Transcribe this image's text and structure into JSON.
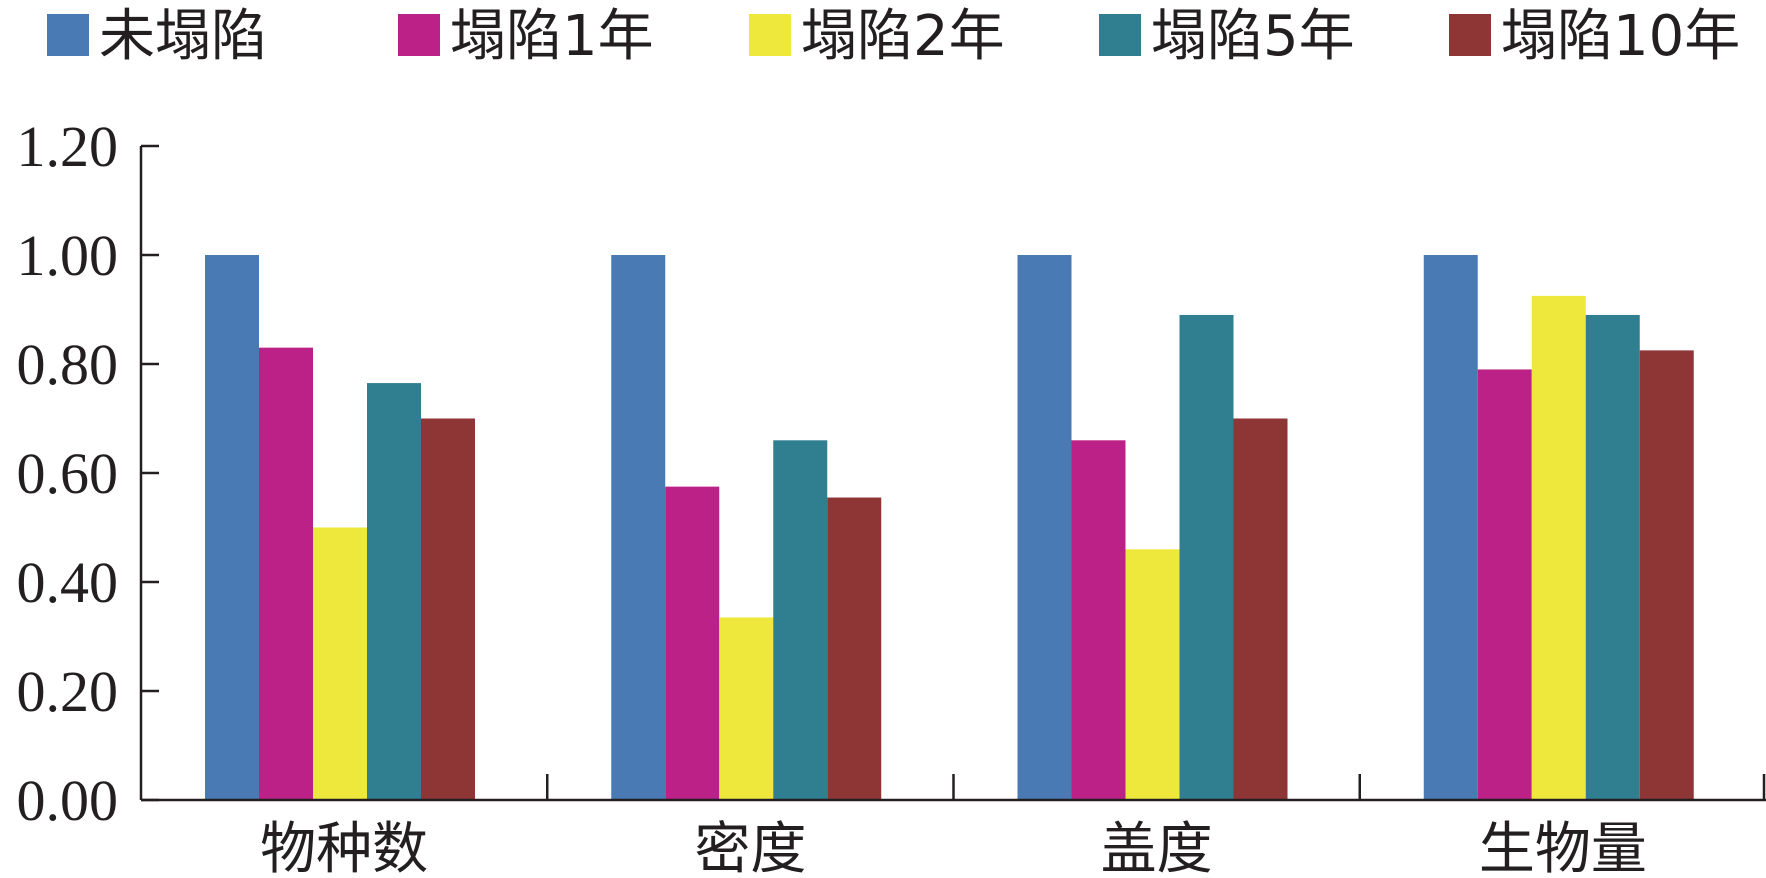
{
  "chart_data": {
    "type": "bar",
    "categories": [
      "物种数",
      "密度",
      "盖度",
      "生物量"
    ],
    "series": [
      {
        "name": "未塌陷",
        "values": [
          1.0,
          1.0,
          1.0,
          1.0
        ],
        "color": "#4a7ab3"
      },
      {
        "name": "塌陷1年",
        "values": [
          0.83,
          0.575,
          0.66,
          0.79
        ],
        "color": "#bb2187"
      },
      {
        "name": "塌陷2年",
        "values": [
          0.5,
          0.335,
          0.46,
          0.925
        ],
        "color": "#efe83c"
      },
      {
        "name": "塌陷5年",
        "values": [
          0.765,
          0.66,
          0.89,
          0.89
        ],
        "color": "#2f7f91"
      },
      {
        "name": "塌陷10年",
        "values": [
          0.7,
          0.555,
          0.7,
          0.825
        ],
        "color": "#8e3636"
      }
    ],
    "yticks": [
      "0.00",
      "0.20",
      "0.40",
      "0.60",
      "0.80",
      "1.00",
      "1.20"
    ],
    "ylim": [
      0,
      1.2
    ],
    "xlabel": "",
    "ylabel": "",
    "title": "",
    "grid": false,
    "legend_position": "top"
  }
}
